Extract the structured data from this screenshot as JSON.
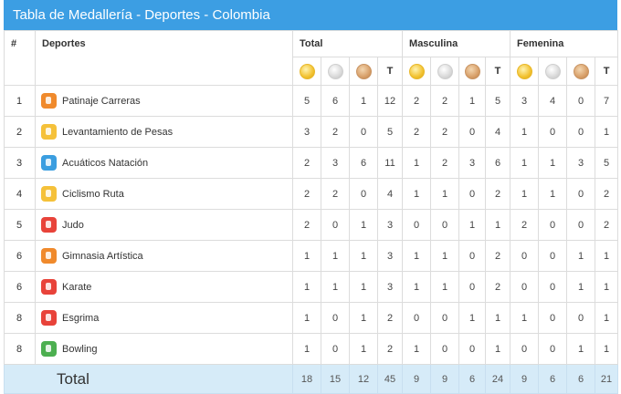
{
  "title": "Tabla de Medallería - Deportes - Colombia",
  "headers": {
    "rank": "#",
    "sport": "Deportes",
    "total": "Total",
    "masc": "Masculina",
    "fem": "Femenina",
    "t": "T"
  },
  "medal_icons": [
    "gold-medal-icon",
    "silver-medal-icon",
    "bronze-medal-icon"
  ],
  "rows": [
    {
      "rank": "1",
      "sport": "Patinaje Carreras",
      "icon_color": "#f08a2c",
      "icon": "skating-icon",
      "v": [
        "5",
        "6",
        "1",
        "12",
        "2",
        "2",
        "1",
        "5",
        "3",
        "4",
        "0",
        "7"
      ]
    },
    {
      "rank": "2",
      "sport": "Levantamiento de Pesas",
      "icon_color": "#f5c13a",
      "icon": "weightlifting-icon",
      "v": [
        "3",
        "2",
        "0",
        "5",
        "2",
        "2",
        "0",
        "4",
        "1",
        "0",
        "0",
        "1"
      ]
    },
    {
      "rank": "3",
      "sport": "Acuáticos Natación",
      "icon_color": "#3b9ee0",
      "icon": "swimming-icon",
      "v": [
        "2",
        "3",
        "6",
        "11",
        "1",
        "2",
        "3",
        "6",
        "1",
        "1",
        "3",
        "5"
      ]
    },
    {
      "rank": "4",
      "sport": "Ciclismo Ruta",
      "icon_color": "#f5c13a",
      "icon": "cycling-icon",
      "v": [
        "2",
        "2",
        "0",
        "4",
        "1",
        "1",
        "0",
        "2",
        "1",
        "1",
        "0",
        "2"
      ]
    },
    {
      "rank": "5",
      "sport": "Judo",
      "icon_color": "#e8433a",
      "icon": "judo-icon",
      "v": [
        "2",
        "0",
        "1",
        "3",
        "0",
        "0",
        "1",
        "1",
        "2",
        "0",
        "0",
        "2"
      ]
    },
    {
      "rank": "6",
      "sport": "Gimnasia Artística",
      "icon_color": "#f08a2c",
      "icon": "gymnastics-icon",
      "v": [
        "1",
        "1",
        "1",
        "3",
        "1",
        "1",
        "0",
        "2",
        "0",
        "0",
        "1",
        "1"
      ]
    },
    {
      "rank": "6",
      "sport": "Karate",
      "icon_color": "#e8433a",
      "icon": "karate-icon",
      "v": [
        "1",
        "1",
        "1",
        "3",
        "1",
        "1",
        "0",
        "2",
        "0",
        "0",
        "1",
        "1"
      ]
    },
    {
      "rank": "8",
      "sport": "Esgrima",
      "icon_color": "#e8433a",
      "icon": "fencing-icon",
      "v": [
        "1",
        "0",
        "1",
        "2",
        "0",
        "0",
        "1",
        "1",
        "1",
        "0",
        "0",
        "1"
      ]
    },
    {
      "rank": "8",
      "sport": "Bowling",
      "icon_color": "#4caf50",
      "icon": "bowling-icon",
      "v": [
        "1",
        "0",
        "1",
        "2",
        "1",
        "0",
        "0",
        "1",
        "0",
        "0",
        "1",
        "1"
      ]
    }
  ],
  "total": {
    "label": "Total",
    "v": [
      "18",
      "15",
      "12",
      "45",
      "9",
      "9",
      "6",
      "24",
      "9",
      "6",
      "6",
      "21"
    ]
  }
}
